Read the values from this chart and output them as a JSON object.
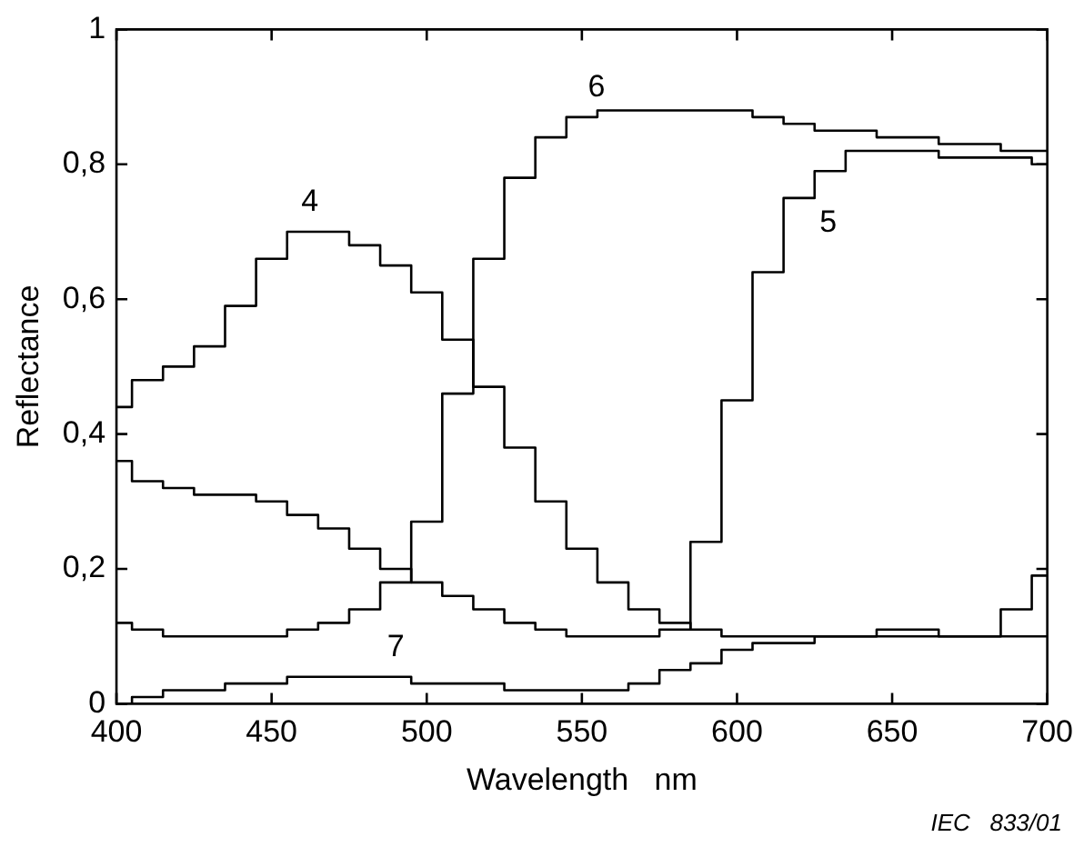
{
  "chart_data": {
    "type": "step",
    "xlabel": "Wavelength   nm",
    "ylabel": "Reflectance",
    "x": [
      400,
      410,
      420,
      430,
      440,
      450,
      460,
      470,
      480,
      490,
      500,
      510,
      520,
      530,
      540,
      550,
      560,
      570,
      580,
      590,
      600,
      610,
      620,
      630,
      640,
      650,
      660,
      670,
      680,
      690,
      700
    ],
    "series": [
      {
        "name": "4",
        "color": "#000000",
        "values": [
          0.44,
          0.48,
          0.5,
          0.53,
          0.59,
          0.66,
          0.7,
          0.7,
          0.68,
          0.65,
          0.61,
          0.54,
          0.47,
          0.38,
          0.3,
          0.23,
          0.18,
          0.14,
          0.12,
          0.11,
          0.1,
          0.1,
          0.1,
          0.1,
          0.1,
          0.11,
          0.11,
          0.1,
          0.1,
          0.1,
          0.1
        ]
      },
      {
        "name": "5",
        "color": "#000000",
        "values": [
          0.36,
          0.33,
          0.32,
          0.31,
          0.31,
          0.3,
          0.28,
          0.26,
          0.23,
          0.2,
          0.18,
          0.16,
          0.14,
          0.12,
          0.11,
          0.1,
          0.1,
          0.1,
          0.11,
          0.24,
          0.45,
          0.64,
          0.75,
          0.79,
          0.82,
          0.82,
          0.82,
          0.81,
          0.81,
          0.81,
          0.8
        ]
      },
      {
        "name": "6",
        "color": "#000000",
        "values": [
          0.12,
          0.11,
          0.1,
          0.1,
          0.1,
          0.1,
          0.11,
          0.12,
          0.14,
          0.18,
          0.27,
          0.46,
          0.66,
          0.78,
          0.84,
          0.87,
          0.88,
          0.88,
          0.88,
          0.88,
          0.88,
          0.87,
          0.86,
          0.85,
          0.85,
          0.84,
          0.84,
          0.83,
          0.83,
          0.82,
          0.82
        ]
      },
      {
        "name": "7",
        "color": "#000000",
        "values": [
          0.0,
          0.01,
          0.02,
          0.02,
          0.03,
          0.03,
          0.04,
          0.04,
          0.04,
          0.04,
          0.03,
          0.03,
          0.03,
          0.02,
          0.02,
          0.02,
          0.02,
          0.03,
          0.05,
          0.06,
          0.08,
          0.09,
          0.09,
          0.1,
          0.1,
          0.1,
          0.1,
          0.1,
          0.1,
          0.14,
          0.19
        ]
      }
    ],
    "xlim": [
      400,
      700
    ],
    "xticks": [
      400,
      450,
      500,
      550,
      600,
      650,
      700
    ],
    "ylim": [
      0,
      1
    ],
    "yticks": [
      0,
      {
        "value": 0.2,
        "label": "0,2"
      },
      {
        "value": 0.4,
        "label": "0,4"
      },
      {
        "value": 0.6,
        "label": "0,6"
      },
      {
        "value": 0.8,
        "label": "0,8"
      },
      1
    ],
    "grid": false,
    "annotations": [
      "IEC   833/01"
    ]
  }
}
